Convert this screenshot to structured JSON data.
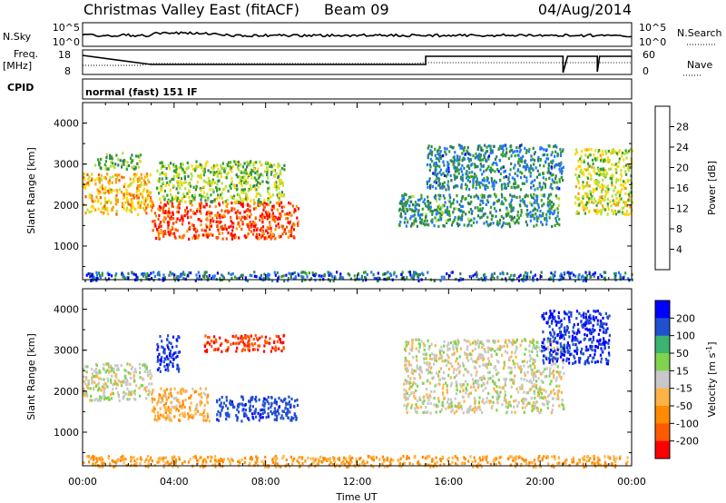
{
  "header": {
    "title": "Christmas Valley East (fitACF)",
    "beam": "Beam 09",
    "date": "04/Aug/2014"
  },
  "strips": {
    "nsky_label": "N.Sky",
    "nsky_ticks": [
      "10^5",
      "10^0"
    ],
    "nsearch_label": "N.Search",
    "nsearch_ticks": [
      "10^5",
      "10^0"
    ],
    "freq_label_1": "Freq.",
    "freq_label_2": "[MHz]",
    "freq_ticks": [
      "18",
      "8"
    ],
    "nave_label": "Nave",
    "nave_ticks": [
      "60",
      "0"
    ],
    "cpid_label": "CPID",
    "cpid_value": "normal (fast) 151 IF"
  },
  "colors": {
    "power_scale": [
      "#0000ff",
      "#1f77ff",
      "#2f7f5f",
      "#33a02c",
      "#b2df3a",
      "#ffd700",
      "#ff9900",
      "#ff5500",
      "#ff0000"
    ],
    "velocity_scale": [
      "#0000ff",
      "#2050d0",
      "#3cb371",
      "#7fd34e",
      "#c8c8c8",
      "#ffb347",
      "#ff8c00",
      "#ff5a00",
      "#ff0000"
    ],
    "frame": "#000000"
  },
  "chart_data": [
    {
      "type": "heatmap",
      "panel": "power",
      "x_ticks": [
        "00:00",
        "04:00",
        "08:00",
        "12:00",
        "16:00",
        "20:00",
        "00:00"
      ],
      "xlim_hours": [
        0,
        24
      ],
      "ylabel": "Slant Range [km]",
      "y_ticks": [
        1000,
        2000,
        3000,
        4000
      ],
      "ylim_km": [
        180,
        4500
      ],
      "colorbar_label": "Power [dB]",
      "colorbar_ticks": [
        "4",
        "8",
        "12",
        "16",
        "20",
        "24",
        "28"
      ],
      "colorbar_range": [
        0,
        30
      ],
      "features": [
        {
          "t0": 0.0,
          "t1": 3.0,
          "r0": 1800,
          "r1": 2800,
          "level": 20
        },
        {
          "t0": 3.0,
          "t1": 9.4,
          "r0": 1200,
          "r1": 2100,
          "level": 26
        },
        {
          "t0": 0.5,
          "t1": 2.5,
          "r0": 2900,
          "r1": 3300,
          "level": 12
        },
        {
          "t0": 3.2,
          "t1": 8.8,
          "r0": 2100,
          "r1": 3100,
          "level": 14
        },
        {
          "t0": 13.8,
          "t1": 20.8,
          "r0": 1500,
          "r1": 2300,
          "level": 9
        },
        {
          "t0": 15.0,
          "t1": 21.0,
          "r0": 2400,
          "r1": 3500,
          "level": 8
        },
        {
          "t0": 21.5,
          "t1": 24.0,
          "r0": 1800,
          "r1": 3400,
          "level": 16
        },
        {
          "t0": 0.0,
          "t1": 24.0,
          "r0": 180,
          "r1": 400,
          "level": 6
        }
      ]
    },
    {
      "type": "heatmap",
      "panel": "velocity",
      "x_ticks": [
        "00:00",
        "04:00",
        "08:00",
        "12:00",
        "16:00",
        "20:00",
        "00:00"
      ],
      "xlim_hours": [
        0,
        24
      ],
      "xlabel": "Time UT",
      "ylabel": "Slant Range [km]",
      "y_ticks": [
        1000,
        2000,
        3000,
        4000
      ],
      "ylim_km": [
        180,
        4500
      ],
      "colorbar_label": "Velocity [m s^-1]",
      "colorbar_ticks": [
        "200",
        "100",
        "50",
        "15",
        "-15",
        "-50",
        "-100",
        "-200"
      ],
      "colorbar_range": [
        -250,
        250
      ],
      "features": [
        {
          "t0": 0.0,
          "t1": 3.0,
          "r0": 1800,
          "r1": 2700,
          "v": 0
        },
        {
          "t0": 3.0,
          "t1": 5.5,
          "r0": 1300,
          "r1": 2100,
          "v": -40
        },
        {
          "t0": 5.8,
          "t1": 9.4,
          "r0": 1300,
          "r1": 1900,
          "v": 180
        },
        {
          "t0": 3.2,
          "t1": 4.2,
          "r0": 2500,
          "r1": 3400,
          "v": 190
        },
        {
          "t0": 5.3,
          "t1": 8.8,
          "r0": 3000,
          "r1": 3400,
          "v": -190
        },
        {
          "t0": 14.0,
          "t1": 21.0,
          "r0": 1500,
          "r1": 3300,
          "v": 0
        },
        {
          "t0": 20.0,
          "t1": 23.0,
          "r0": 2700,
          "r1": 4000,
          "v": 200
        },
        {
          "t0": 0.0,
          "t1": 24.0,
          "r0": 180,
          "r1": 450,
          "v": -50
        }
      ]
    }
  ]
}
